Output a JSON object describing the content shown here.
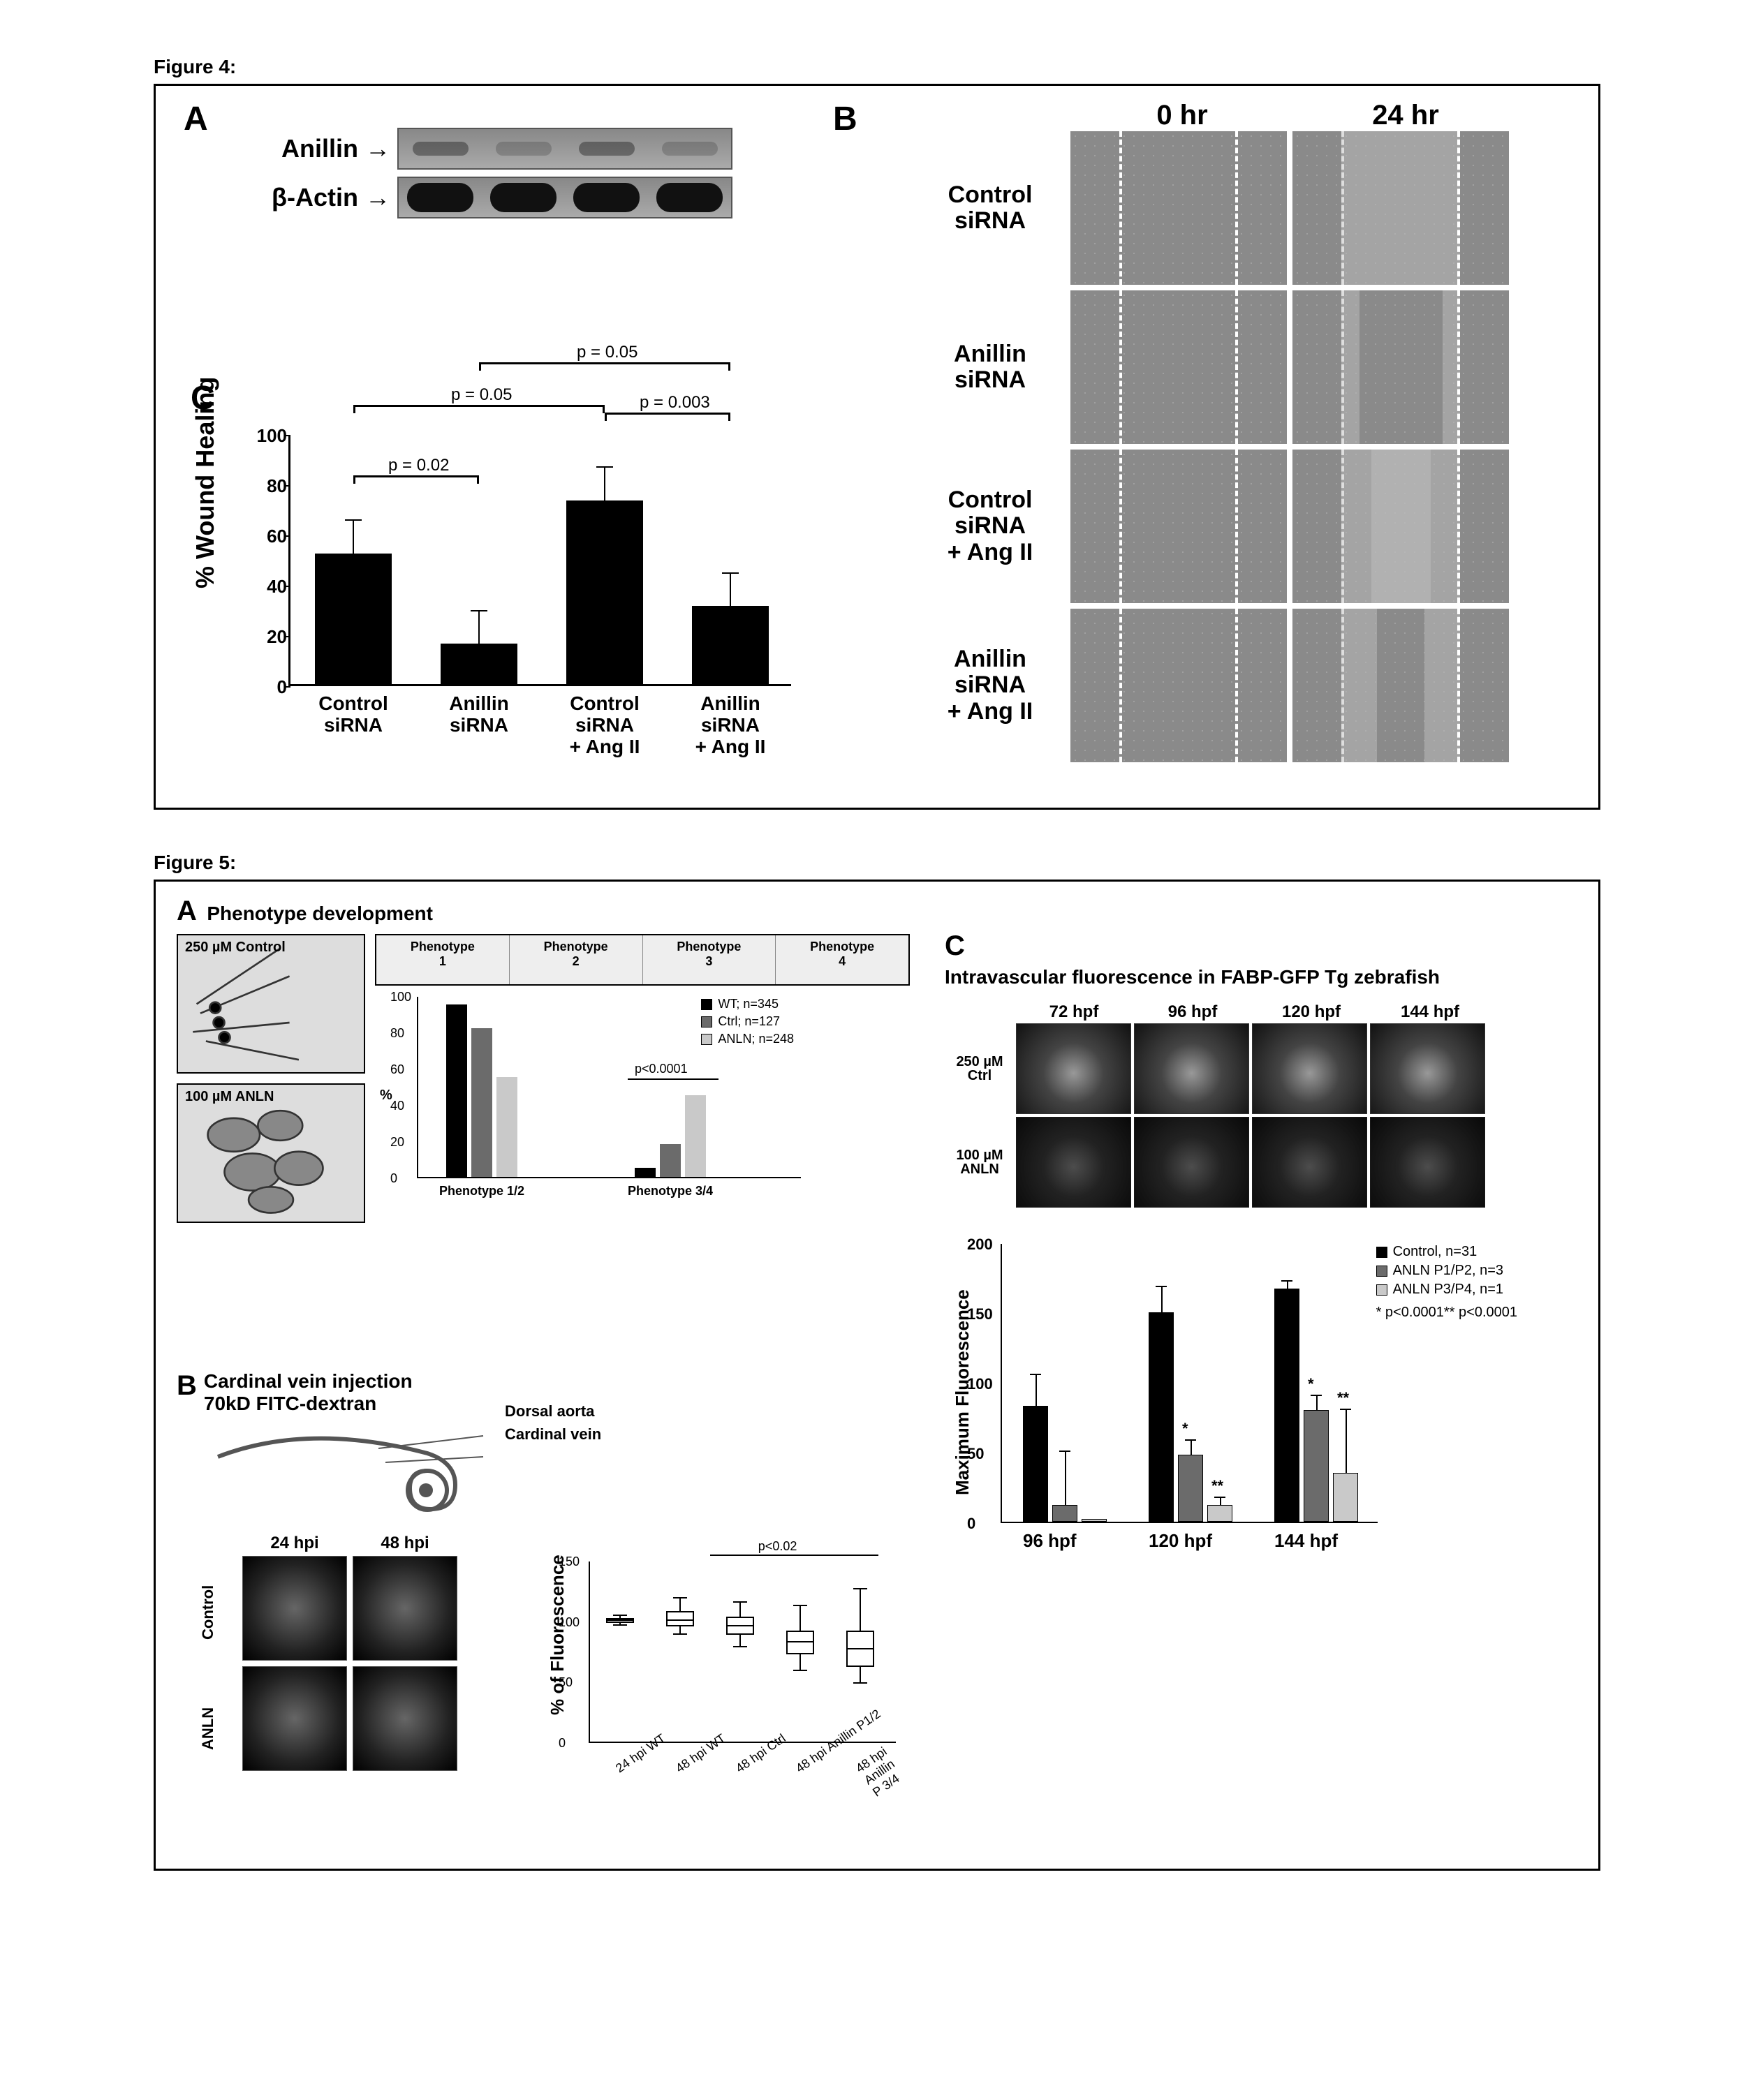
{
  "fig4": {
    "label": "Figure 4:",
    "panelA": {
      "letter": "A",
      "rows": [
        "Anillin",
        "β-Actin"
      ]
    },
    "panelB": {
      "letter": "B",
      "col_headers": [
        "0 hr",
        "24 hr"
      ],
      "row_labels": [
        "Control\nsiRNA",
        "Anillin\nsiRNA",
        "Control\nsiRNA\n+ Ang II",
        "Anillin\nsiRNA\n+ Ang II"
      ]
    },
    "panelC": {
      "letter": "C",
      "ylabel": "% Wound Healing",
      "ylim": [
        0,
        100
      ],
      "ytick_step": 20,
      "categories": [
        "Control\nsiRNA",
        "Anillin\nsiRNA",
        "Control\nsiRNA\n+ Ang II",
        "Anillin\nsiRNA\n+ Ang II"
      ],
      "values": [
        52,
        16,
        73,
        31
      ],
      "errors": [
        13,
        13,
        13,
        13
      ],
      "bar_color": "#000000",
      "sig": [
        {
          "from": 0,
          "to": 1,
          "y": 70,
          "text": "p = 0.02"
        },
        {
          "from": 0,
          "to": 2,
          "y": 98,
          "text": "p = 0.05"
        },
        {
          "from": 1,
          "to": 3,
          "y": 115,
          "text": "p = 0.05"
        },
        {
          "from": 2,
          "to": 3,
          "y": 95,
          "text": "p = 0.003"
        }
      ]
    }
  },
  "fig5": {
    "label": "Figure 5:",
    "panelA": {
      "letter": "A",
      "subtitle": "Phenotype development",
      "micro_captions": [
        "250 µM Control",
        "100 µM ANLN"
      ],
      "pheno_headers": [
        "Phenotype\n1",
        "Phenotype\n2",
        "Phenotype\n3",
        "Phenotype\n4"
      ],
      "chart": {
        "categories": [
          "Phenotype 1/2",
          "Phenotype 3/4"
        ],
        "series": [
          {
            "name": "WT; n=345",
            "color": "#000000",
            "values": [
              95,
              5
            ]
          },
          {
            "name": "Ctrl; n=127",
            "color": "#6b6b6b",
            "values": [
              82,
              18
            ]
          },
          {
            "name": "ANLN; n=248",
            "color": "#c9c9c9",
            "values": [
              55,
              45
            ]
          }
        ],
        "ylim": [
          0,
          100
        ],
        "ytick_step": 20,
        "ylabel": "%",
        "sig_text": "p<0.0001"
      }
    },
    "panelB": {
      "letter": "B",
      "subtitle": "Cardinal vein injection\n70kD FITC-dextran",
      "vein_labels": [
        "Dorsal aorta",
        "Cardinal vein"
      ],
      "col_headers": [
        "24 hpi",
        "48 hpi"
      ],
      "row_labels": [
        "Control",
        "ANLN"
      ],
      "box": {
        "ylabel": "% of Fluorescence",
        "ylim": [
          0,
          150
        ],
        "ytick_step": 50,
        "groups": [
          "24 hpi WT",
          "48 hpi WT",
          "48 hpi Ctrl",
          "48 hpi Anillin P1/2",
          "48 hpi Anillin P 3/4"
        ],
        "median": [
          100,
          100,
          95,
          82,
          76
        ],
        "q1": [
          98,
          95,
          88,
          72,
          62
        ],
        "q3": [
          102,
          108,
          103,
          92,
          92
        ],
        "lo": [
          96,
          88,
          78,
          58,
          48
        ],
        "hi": [
          104,
          118,
          115,
          112,
          126
        ],
        "sig_text": "p<0.02"
      }
    },
    "panelC": {
      "letter": "C",
      "subtitle": "Intravascular fluorescence in FABP-GFP Tg zebrafish",
      "col_headers": [
        "72 hpf",
        "96 hpf",
        "120 hpf",
        "144 hpf"
      ],
      "row_labels": [
        "250 µM\nCtrl",
        "100 µM\nANLN"
      ],
      "chart": {
        "ylabel": "Maximum Fluorescence",
        "ylim": [
          0,
          200
        ],
        "ytick_step": 50,
        "categories": [
          "96 hpf",
          "120 hpf",
          "144 hpf"
        ],
        "series": [
          {
            "name": "Control, n=31",
            "color": "#000000",
            "values": [
              83,
              150,
              167
            ],
            "err": [
              22,
              18,
              5
            ],
            "star": [
              "",
              "",
              ""
            ]
          },
          {
            "name": "ANLN P1/P2, n=3",
            "color": "#6b6b6b",
            "values": [
              12,
              48,
              80
            ],
            "err": [
              38,
              10,
              10
            ],
            "star": [
              "",
              "*",
              "*"
            ]
          },
          {
            "name": "ANLN P3/P4, n=1",
            "color": "#c9c9c9",
            "values": [
              2,
              12,
              35
            ],
            "err": [
              0,
              5,
              45
            ],
            "star": [
              "",
              "**",
              "**"
            ]
          }
        ],
        "sig_legend": [
          "* p<0.0001",
          "** p<0.0001"
        ]
      }
    }
  }
}
